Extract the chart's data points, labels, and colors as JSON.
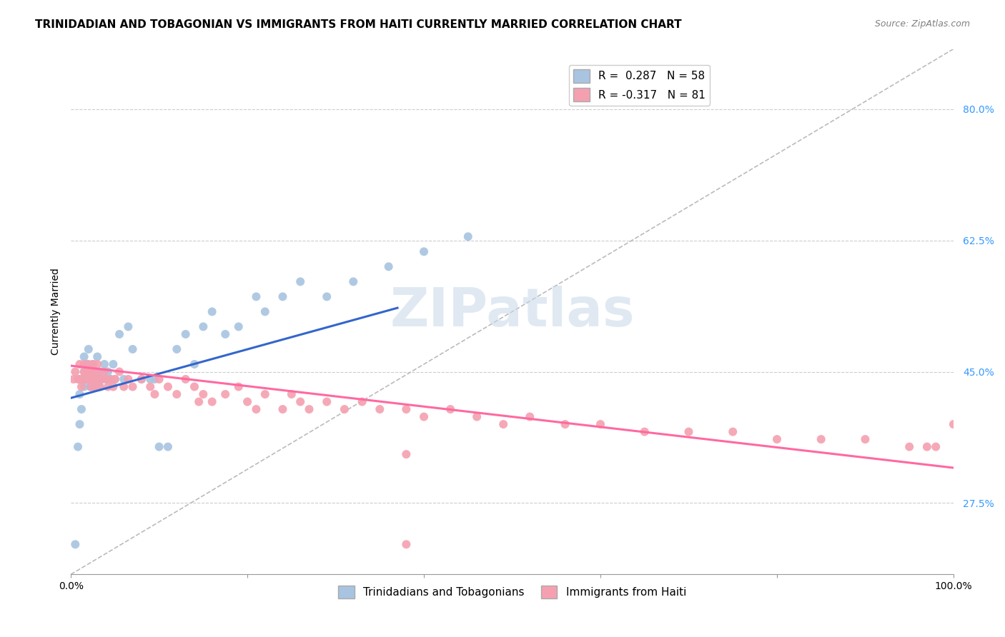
{
  "title": "TRINIDADIAN AND TOBAGONIAN VS IMMIGRANTS FROM HAITI CURRENTLY MARRIED CORRELATION CHART",
  "source": "Source: ZipAtlas.com",
  "ylabel": "Currently Married",
  "yticks_labels": [
    "27.5%",
    "45.0%",
    "62.5%",
    "80.0%"
  ],
  "ytick_vals": [
    0.275,
    0.45,
    0.625,
    0.8
  ],
  "xlim": [
    0.0,
    1.0
  ],
  "ylim": [
    0.18,
    0.88
  ],
  "legend_blue_label": "R =  0.287   N = 58",
  "legend_pink_label": "R = -0.317   N = 81",
  "legend_bottom_blue": "Trinidadians and Tobagonians",
  "legend_bottom_pink": "Immigrants from Haiti",
  "blue_color": "#a8c4e0",
  "pink_color": "#f4a0b0",
  "blue_line_color": "#3366cc",
  "pink_line_color": "#ff69a0",
  "diag_line_color": "#bbbbbb",
  "watermark": "ZIPatlas",
  "title_fontsize": 11,
  "axis_label_fontsize": 10,
  "tick_fontsize": 10,
  "blue_scatter_x": [
    0.005,
    0.008,
    0.01,
    0.01,
    0.01,
    0.012,
    0.013,
    0.015,
    0.015,
    0.015,
    0.018,
    0.018,
    0.02,
    0.02,
    0.022,
    0.022,
    0.023,
    0.025,
    0.025,
    0.025,
    0.027,
    0.028,
    0.03,
    0.03,
    0.032,
    0.033,
    0.035,
    0.038,
    0.04,
    0.042,
    0.045,
    0.048,
    0.05,
    0.055,
    0.06,
    0.065,
    0.07,
    0.08,
    0.09,
    0.095,
    0.1,
    0.11,
    0.12,
    0.13,
    0.14,
    0.15,
    0.16,
    0.175,
    0.19,
    0.21,
    0.22,
    0.24,
    0.26,
    0.29,
    0.32,
    0.36,
    0.4,
    0.45
  ],
  "blue_scatter_y": [
    0.22,
    0.35,
    0.38,
    0.42,
    0.44,
    0.4,
    0.44,
    0.43,
    0.45,
    0.47,
    0.44,
    0.46,
    0.44,
    0.48,
    0.43,
    0.45,
    0.44,
    0.43,
    0.44,
    0.46,
    0.44,
    0.43,
    0.44,
    0.47,
    0.43,
    0.45,
    0.44,
    0.46,
    0.44,
    0.45,
    0.44,
    0.46,
    0.44,
    0.5,
    0.44,
    0.51,
    0.48,
    0.44,
    0.44,
    0.44,
    0.35,
    0.35,
    0.48,
    0.5,
    0.46,
    0.51,
    0.53,
    0.5,
    0.51,
    0.55,
    0.53,
    0.55,
    0.57,
    0.55,
    0.57,
    0.59,
    0.61,
    0.63
  ],
  "pink_scatter_x": [
    0.003,
    0.005,
    0.008,
    0.01,
    0.01,
    0.012,
    0.013,
    0.015,
    0.015,
    0.015,
    0.018,
    0.018,
    0.02,
    0.02,
    0.022,
    0.022,
    0.023,
    0.025,
    0.025,
    0.025,
    0.027,
    0.028,
    0.03,
    0.03,
    0.032,
    0.033,
    0.035,
    0.038,
    0.04,
    0.042,
    0.045,
    0.048,
    0.05,
    0.055,
    0.06,
    0.065,
    0.07,
    0.08,
    0.09,
    0.095,
    0.1,
    0.11,
    0.12,
    0.13,
    0.14,
    0.145,
    0.15,
    0.16,
    0.175,
    0.19,
    0.2,
    0.21,
    0.22,
    0.24,
    0.25,
    0.26,
    0.27,
    0.29,
    0.31,
    0.33,
    0.35,
    0.38,
    0.4,
    0.43,
    0.46,
    0.49,
    0.52,
    0.56,
    0.6,
    0.65,
    0.7,
    0.75,
    0.8,
    0.85,
    0.9,
    0.95,
    0.97,
    0.98,
    1.0,
    0.38,
    0.38
  ],
  "pink_scatter_y": [
    0.44,
    0.45,
    0.44,
    0.44,
    0.46,
    0.43,
    0.44,
    0.45,
    0.44,
    0.46,
    0.44,
    0.45,
    0.44,
    0.46,
    0.45,
    0.44,
    0.43,
    0.44,
    0.45,
    0.46,
    0.43,
    0.44,
    0.45,
    0.46,
    0.44,
    0.43,
    0.44,
    0.45,
    0.44,
    0.43,
    0.44,
    0.43,
    0.44,
    0.45,
    0.43,
    0.44,
    0.43,
    0.44,
    0.43,
    0.42,
    0.44,
    0.43,
    0.42,
    0.44,
    0.43,
    0.41,
    0.42,
    0.41,
    0.42,
    0.43,
    0.41,
    0.4,
    0.42,
    0.4,
    0.42,
    0.41,
    0.4,
    0.41,
    0.4,
    0.41,
    0.4,
    0.4,
    0.39,
    0.4,
    0.39,
    0.38,
    0.39,
    0.38,
    0.38,
    0.37,
    0.37,
    0.37,
    0.36,
    0.36,
    0.36,
    0.35,
    0.35,
    0.35,
    0.38,
    0.22,
    0.34
  ]
}
